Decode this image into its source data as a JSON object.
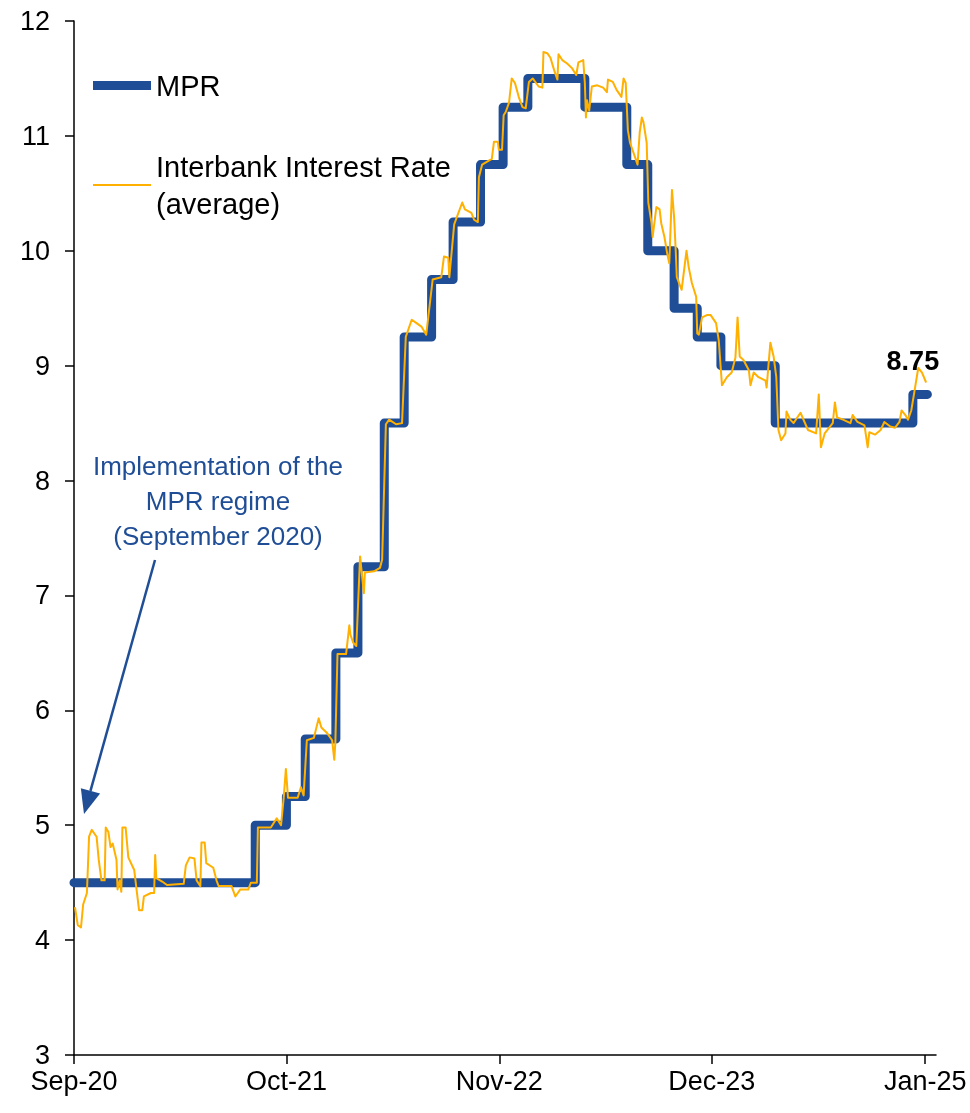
{
  "chart_data": {
    "type": "line",
    "xlim": [
      "2020-09-01",
      "2025-01-21"
    ],
    "xticks": [
      {
        "value": "2020-09-01",
        "label": "Sep-20"
      },
      {
        "value": "2021-10-01",
        "label": "Oct-21"
      },
      {
        "value": "2022-11-01",
        "label": "Nov-22"
      },
      {
        "value": "2023-12-01",
        "label": "Dec-23"
      },
      {
        "value": "2025-01-01",
        "label": "Jan-25"
      }
    ],
    "ylim": [
      3,
      12
    ],
    "yticks": [
      3,
      4,
      5,
      6,
      7,
      8,
      9,
      10,
      11,
      12
    ],
    "legend": "top left",
    "annotations": [
      "Implementation of the\nMPR regime\n(September 2020)"
    ],
    "series": [
      {
        "name": "MPR",
        "type": "step",
        "color": "#1f4e96",
        "x": [
          "2020-09-01",
          "2021-08-04",
          "2021-10-01",
          "2021-11-05",
          "2022-01-01",
          "2022-02-11",
          "2022-04-01",
          "2022-05-08",
          "2022-06-28",
          "2022-08-07",
          "2022-09-27",
          "2022-11-08",
          "2022-12-24",
          "2023-04-09",
          "2023-06-26",
          "2023-08-04",
          "2023-09-22",
          "2023-11-04",
          "2023-12-18",
          "2024-03-28",
          "2024-12-09",
          "2025-01-05"
        ],
        "values": [
          4.5,
          5.0,
          5.25,
          5.75,
          6.5,
          7.25,
          8.5,
          9.25,
          9.75,
          10.25,
          10.75,
          11.25,
          11.5,
          11.25,
          10.75,
          10.0,
          9.5,
          9.25,
          9.0,
          8.5,
          8.75,
          8.75
        ],
        "value_labels": [
          null,
          null,
          null,
          null,
          null,
          null,
          null,
          null,
          null,
          null,
          null,
          null,
          null,
          null,
          null,
          null,
          null,
          null,
          null,
          null,
          "8.75",
          null
        ]
      },
      {
        "name": "Interbank Interest Rate (average)",
        "color": "#ffb000",
        "x": [
          "2020-09-03",
          "2020-09-08",
          "2020-09-14",
          "2020-09-18",
          "2020-09-25",
          "2020-09-29",
          "2020-10-04",
          "2020-10-13",
          "2020-10-17",
          "2020-10-22",
          "2020-10-28",
          "2020-10-30",
          "2020-11-04",
          "2020-11-08",
          "2020-11-12",
          "2020-11-19",
          "2020-11-21",
          "2020-11-25",
          "2020-11-28",
          "2020-11-30",
          "2020-12-06",
          "2020-12-11",
          "2020-12-22",
          "2020-12-31",
          "2021-01-06",
          "2021-01-09",
          "2021-01-22",
          "2021-01-28",
          "2021-01-30",
          "2021-02-01",
          "2021-02-12",
          "2021-02-21",
          "2021-03-24",
          "2021-03-28",
          "2021-04-04",
          "2021-04-13",
          "2021-04-17",
          "2021-04-24",
          "2021-04-26",
          "2021-05-02",
          "2021-05-05",
          "2021-05-18",
          "2021-05-24",
          "2021-05-28",
          "2021-06-21",
          "2021-06-28",
          "2021-07-07",
          "2021-07-22",
          "2021-07-27",
          "2021-08-07",
          "2021-08-09",
          "2021-09-02",
          "2021-09-13",
          "2021-09-21",
          "2021-09-26",
          "2021-09-30",
          "2021-10-04",
          "2021-10-22",
          "2021-10-28",
          "2021-11-02",
          "2021-11-08",
          "2021-11-21",
          "2021-11-30",
          "2021-12-05",
          "2021-12-16",
          "2021-12-25",
          "2021-12-29",
          "2021-12-31",
          "2022-01-04",
          "2022-01-20",
          "2022-01-26",
          "2022-01-28",
          "2022-02-02",
          "2022-02-08",
          "2022-02-15",
          "2022-02-22",
          "2022-02-24",
          "2022-03-13",
          "2022-03-24",
          "2022-03-28",
          "2022-04-04",
          "2022-04-10",
          "2022-04-23",
          "2022-05-04",
          "2022-05-11",
          "2022-05-22",
          "2022-05-31",
          "2022-06-09",
          "2022-06-18",
          "2022-06-30",
          "2022-07-16",
          "2022-07-21",
          "2022-07-29",
          "2022-07-31",
          "2022-08-09",
          "2022-08-24",
          "2022-08-29",
          "2022-09-10",
          "2022-09-15",
          "2022-09-22",
          "2022-09-24",
          "2022-09-30",
          "2022-10-07",
          "2022-10-18",
          "2022-10-22",
          "2022-10-29",
          "2022-10-31",
          "2022-11-06",
          "2022-11-09",
          "2022-11-13",
          "2022-11-19",
          "2022-11-24",
          "2022-11-30",
          "2022-12-07",
          "2022-12-14",
          "2022-12-20",
          "2022-12-26",
          "2023-01-02",
          "2023-01-13",
          "2023-01-20",
          "2023-01-22",
          "2023-01-29",
          "2023-02-04",
          "2023-02-11",
          "2023-02-17",
          "2023-02-19",
          "2023-02-26",
          "2023-03-07",
          "2023-03-16",
          "2023-03-24",
          "2023-03-28",
          "2023-04-06",
          "2023-04-09",
          "2023-04-11",
          "2023-04-13",
          "2023-04-17",
          "2023-04-22",
          "2023-05-02",
          "2023-05-13",
          "2023-05-20",
          "2023-05-22",
          "2023-05-31",
          "2023-06-07",
          "2023-06-16",
          "2023-06-20",
          "2023-06-24",
          "2023-06-28",
          "2023-07-02",
          "2023-07-11",
          "2023-07-16",
          "2023-07-20",
          "2023-07-24",
          "2023-07-27",
          "2023-08-02",
          "2023-08-05",
          "2023-08-11",
          "2023-08-13",
          "2023-08-20",
          "2023-08-26",
          "2023-08-29",
          "2023-09-04",
          "2023-09-09",
          "2023-09-13",
          "2023-09-18",
          "2023-09-22",
          "2023-09-25",
          "2023-09-27",
          "2023-10-06",
          "2023-10-15",
          "2023-10-19",
          "2023-10-25",
          "2023-11-02",
          "2023-11-04",
          "2023-11-07",
          "2023-11-13",
          "2023-11-22",
          "2023-11-29",
          "2023-12-09",
          "2023-12-14",
          "2023-12-20",
          "2023-12-29",
          "2024-01-07",
          "2024-01-14",
          "2024-01-18",
          "2024-01-22",
          "2024-01-29",
          "2024-02-08",
          "2024-02-11",
          "2024-02-17",
          "2024-02-26",
          "2024-03-10",
          "2024-03-12",
          "2024-03-19",
          "2024-03-25",
          "2024-03-30",
          "2024-04-03",
          "2024-04-08",
          "2024-04-16",
          "2024-04-18",
          "2024-04-25",
          "2024-05-01",
          "2024-05-14",
          "2024-05-28",
          "2024-06-12",
          "2024-06-17",
          "2024-06-21",
          "2024-06-28",
          "2024-07-13",
          "2024-07-17",
          "2024-07-21",
          "2024-08-01",
          "2024-08-15",
          "2024-08-19",
          "2024-08-28",
          "2024-09-10",
          "2024-09-16",
          "2024-09-19",
          "2024-09-30",
          "2024-10-10",
          "2024-10-17",
          "2024-10-28",
          "2024-11-06",
          "2024-11-14",
          "2024-11-18",
          "2024-11-25",
          "2024-11-30",
          "2024-12-06",
          "2024-12-11",
          "2024-12-19",
          "2024-12-26",
          "2025-01-02"
        ],
        "values": [
          4.28,
          4.13,
          4.11,
          4.31,
          4.41,
          4.9,
          4.96,
          4.9,
          4.7,
          4.52,
          4.52,
          4.98,
          4.94,
          4.81,
          4.84,
          4.7,
          4.44,
          4.52,
          4.42,
          4.98,
          4.98,
          4.72,
          4.61,
          4.26,
          4.26,
          4.38,
          4.41,
          4.41,
          4.74,
          4.54,
          4.51,
          4.48,
          4.49,
          4.65,
          4.72,
          4.71,
          4.52,
          4.47,
          4.85,
          4.85,
          4.67,
          4.63,
          4.52,
          4.47,
          4.47,
          4.38,
          4.44,
          4.44,
          4.5,
          4.5,
          4.98,
          4.98,
          5.06,
          5.0,
          5.24,
          5.49,
          5.24,
          5.24,
          5.33,
          5.26,
          5.74,
          5.76,
          5.93,
          5.85,
          5.8,
          5.74,
          5.57,
          5.72,
          6.49,
          6.49,
          6.74,
          6.66,
          6.59,
          6.56,
          7.34,
          7.02,
          7.2,
          7.21,
          7.24,
          7.31,
          8.49,
          8.53,
          8.49,
          8.5,
          9.25,
          9.4,
          9.37,
          9.34,
          9.27,
          9.75,
          9.77,
          9.95,
          9.94,
          9.77,
          10.23,
          10.42,
          10.36,
          10.33,
          10.27,
          10.25,
          10.64,
          10.75,
          10.77,
          10.8,
          10.95,
          10.95,
          10.88,
          10.88,
          11.18,
          11.21,
          11.29,
          11.5,
          11.46,
          11.34,
          11.25,
          11.24,
          11.47,
          11.5,
          11.43,
          11.42,
          11.73,
          11.72,
          11.68,
          11.57,
          11.49,
          11.71,
          11.66,
          11.63,
          11.59,
          11.53,
          11.64,
          11.66,
          11.46,
          11.16,
          11.31,
          11.22,
          11.43,
          11.44,
          11.42,
          11.38,
          11.49,
          11.47,
          11.4,
          11.34,
          11.5,
          11.46,
          11.05,
          10.94,
          10.82,
          10.75,
          11.03,
          11.16,
          11.12,
          10.94,
          10.42,
          10.24,
          10.12,
          10.38,
          10.36,
          10.24,
          10.12,
          9.98,
          9.89,
          10.53,
          10.29,
          10.0,
          9.77,
          9.66,
          10.0,
          9.86,
          9.72,
          9.6,
          9.28,
          9.27,
          9.42,
          9.44,
          9.44,
          9.37,
          9.22,
          8.83,
          8.9,
          8.94,
          9.07,
          9.42,
          9.08,
          9.05,
          8.96,
          8.83,
          8.94,
          8.9,
          8.87,
          8.81,
          9.2,
          9.08,
          8.9,
          8.44,
          8.35,
          8.41,
          8.6,
          8.53,
          8.5,
          8.59,
          8.44,
          8.41,
          8.75,
          8.29,
          8.41,
          8.5,
          8.68,
          8.55,
          8.53,
          8.5,
          8.57,
          8.51,
          8.48,
          8.29,
          8.42,
          8.4,
          8.44,
          8.51,
          8.47,
          8.46,
          8.51,
          8.61,
          8.57,
          8.53,
          8.61,
          8.75,
          8.98,
          8.94,
          8.86
        ]
      }
    ]
  }
}
